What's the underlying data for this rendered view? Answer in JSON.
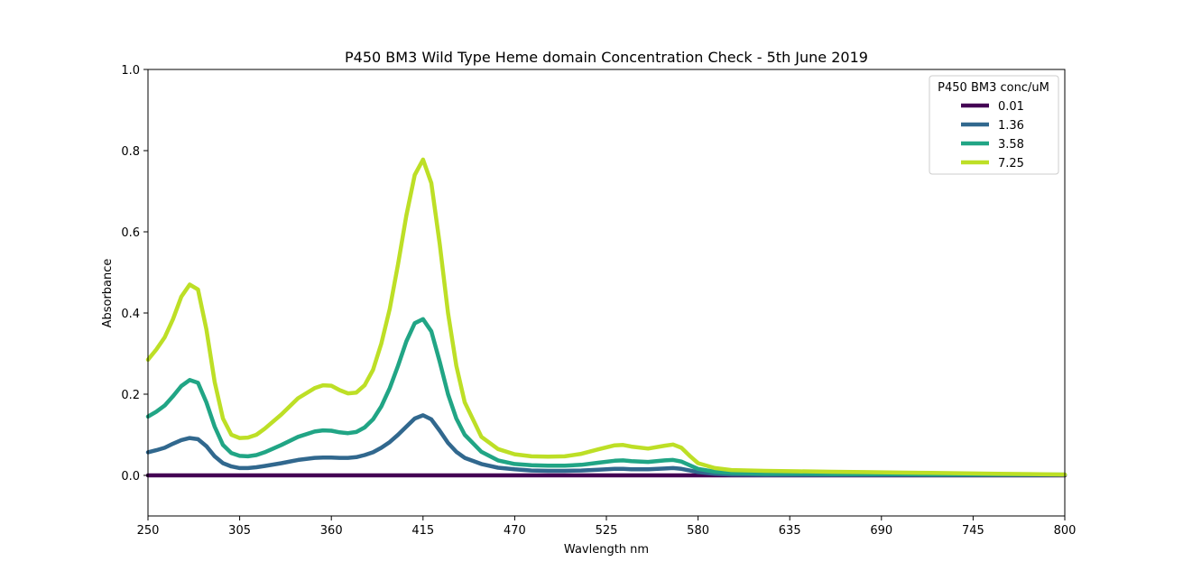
{
  "chart_data": {
    "type": "line",
    "title": "P450 BM3 Wild Type Heme domain Concentration Check - 5th June 2019",
    "xlabel": "Wavlength nm",
    "ylabel": "Absorbance",
    "xlim": [
      250,
      800
    ],
    "ylim": [
      -0.1,
      1.0
    ],
    "xticks": [
      250,
      305,
      360,
      415,
      470,
      525,
      580,
      635,
      690,
      745,
      800
    ],
    "yticks": [
      0.0,
      0.2,
      0.4,
      0.6,
      0.8,
      1.0
    ],
    "ytick_labels": [
      "0.0",
      "0.2",
      "0.4",
      "0.6",
      "0.8",
      "1.0"
    ],
    "grid": false,
    "legend": {
      "title": "P450 BM3 conc/uM",
      "position": "top-right"
    },
    "x": [
      250,
      255,
      260,
      265,
      270,
      275,
      280,
      285,
      290,
      295,
      300,
      305,
      310,
      315,
      320,
      330,
      340,
      350,
      355,
      360,
      365,
      370,
      375,
      380,
      385,
      390,
      395,
      400,
      405,
      410,
      415,
      420,
      425,
      430,
      435,
      440,
      450,
      460,
      470,
      480,
      490,
      500,
      510,
      520,
      530,
      535,
      540,
      550,
      560,
      565,
      570,
      575,
      580,
      590,
      600,
      620,
      640,
      660,
      680,
      700,
      720,
      740,
      760,
      780,
      800
    ],
    "series": [
      {
        "name": "0.01",
        "color": "#440154",
        "values": [
          0.0,
          0.0,
          0.0,
          0.0,
          0.0,
          0.0,
          0.0,
          0.0,
          0.0,
          0.0,
          0.0,
          0.0,
          0.0,
          0.0,
          0.0,
          0.0,
          0.0,
          0.0,
          0.0,
          0.0,
          0.0,
          0.0,
          0.0,
          0.0,
          0.0,
          0.0,
          0.0,
          0.0,
          0.0,
          0.0,
          0.0,
          0.0,
          0.0,
          0.0,
          0.0,
          0.0,
          0.0,
          0.0,
          0.0,
          0.0,
          0.0,
          0.0,
          0.0,
          0.0,
          0.0,
          0.0,
          0.0,
          0.0,
          0.0,
          0.0,
          0.0,
          0.0,
          0.0,
          0.0,
          0.0,
          0.0,
          0.0,
          0.0,
          0.0,
          0.0,
          0.0,
          0.0,
          0.0,
          0.0,
          0.0
        ]
      },
      {
        "name": "1.36",
        "color": "#31688e",
        "values": [
          0.057,
          0.062,
          0.068,
          0.078,
          0.087,
          0.092,
          0.089,
          0.072,
          0.047,
          0.03,
          0.022,
          0.018,
          0.018,
          0.02,
          0.023,
          0.03,
          0.038,
          0.043,
          0.044,
          0.044,
          0.043,
          0.043,
          0.045,
          0.05,
          0.057,
          0.068,
          0.082,
          0.1,
          0.12,
          0.14,
          0.148,
          0.138,
          0.11,
          0.08,
          0.058,
          0.043,
          0.028,
          0.019,
          0.015,
          0.012,
          0.011,
          0.011,
          0.012,
          0.014,
          0.016,
          0.016,
          0.015,
          0.015,
          0.017,
          0.018,
          0.016,
          0.012,
          0.008,
          0.004,
          0.002,
          0.001,
          0.001,
          0.001,
          0.001,
          0.001,
          0.001,
          0.001,
          0.001,
          0.001,
          0.001
        ]
      },
      {
        "name": "3.58",
        "color": "#21a585",
        "values": [
          0.145,
          0.157,
          0.172,
          0.195,
          0.22,
          0.235,
          0.228,
          0.18,
          0.12,
          0.075,
          0.055,
          0.048,
          0.047,
          0.05,
          0.057,
          0.075,
          0.095,
          0.108,
          0.111,
          0.11,
          0.106,
          0.104,
          0.107,
          0.118,
          0.138,
          0.17,
          0.215,
          0.27,
          0.33,
          0.375,
          0.385,
          0.355,
          0.28,
          0.2,
          0.14,
          0.1,
          0.058,
          0.037,
          0.028,
          0.025,
          0.024,
          0.024,
          0.026,
          0.031,
          0.036,
          0.037,
          0.035,
          0.033,
          0.037,
          0.038,
          0.034,
          0.025,
          0.016,
          0.009,
          0.006,
          0.004,
          0.004,
          0.003,
          0.003,
          0.003,
          0.002,
          0.002,
          0.002,
          0.002,
          0.002
        ]
      },
      {
        "name": "7.25",
        "color": "#bddf26",
        "values": [
          0.285,
          0.31,
          0.34,
          0.385,
          0.44,
          0.47,
          0.458,
          0.36,
          0.23,
          0.14,
          0.1,
          0.092,
          0.093,
          0.1,
          0.115,
          0.15,
          0.19,
          0.215,
          0.222,
          0.221,
          0.21,
          0.202,
          0.204,
          0.222,
          0.26,
          0.325,
          0.41,
          0.52,
          0.64,
          0.74,
          0.778,
          0.72,
          0.57,
          0.4,
          0.27,
          0.18,
          0.095,
          0.065,
          0.052,
          0.047,
          0.046,
          0.047,
          0.053,
          0.064,
          0.074,
          0.075,
          0.071,
          0.066,
          0.073,
          0.076,
          0.068,
          0.048,
          0.03,
          0.018,
          0.013,
          0.011,
          0.01,
          0.009,
          0.008,
          0.007,
          0.006,
          0.005,
          0.004,
          0.003,
          0.002
        ]
      }
    ]
  }
}
